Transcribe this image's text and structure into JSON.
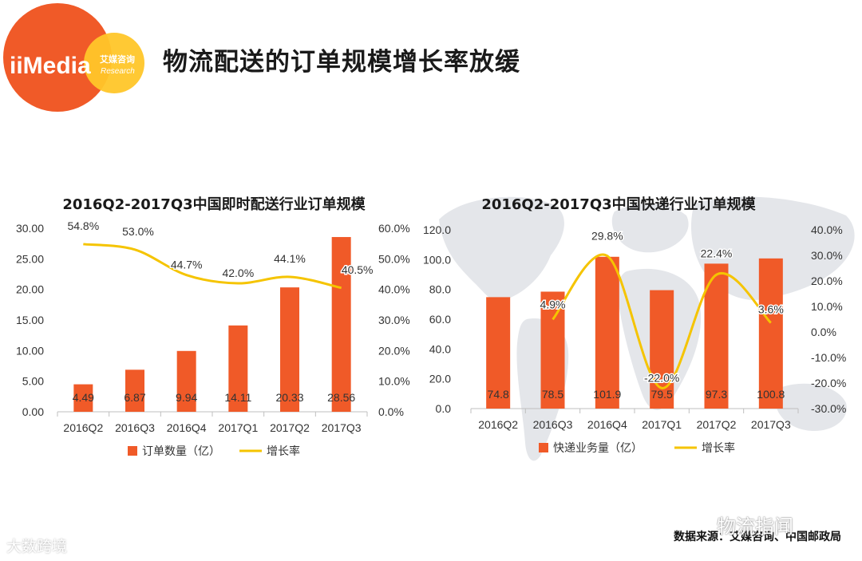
{
  "header": {
    "logo_text": "iiMedia",
    "logo_cn": "艾媒咨询",
    "logo_en": "Research",
    "title": "物流配送的订单规模增长率放缓"
  },
  "colors": {
    "bar": "#F05A28",
    "line": "#F5C400",
    "logo_orange": "#F05A28",
    "logo_yellow": "#FFC629",
    "map": "#E4E6EA"
  },
  "chart_data": [
    {
      "type": "bar",
      "title": "2016Q2-2017Q3中国即时配送行业订单规模",
      "categories": [
        "2016Q2",
        "2016Q3",
        "2016Q4",
        "2017Q1",
        "2017Q2",
        "2017Q3"
      ],
      "series": [
        {
          "name": "订单数量（亿）",
          "type": "bar",
          "axis": "left",
          "values": [
            4.49,
            6.87,
            9.94,
            14.11,
            20.33,
            28.56
          ],
          "labels": [
            "4.49",
            "6.87",
            "9.94",
            "14.11",
            "20.33",
            "28.56"
          ]
        },
        {
          "name": "增长率",
          "type": "line",
          "axis": "right",
          "values": [
            54.8,
            53.0,
            44.7,
            42.0,
            44.1,
            40.5
          ],
          "labels": [
            "54.8%",
            "53.0%",
            "44.7%",
            "42.0%",
            "44.1%",
            "40.5%"
          ]
        }
      ],
      "ylim": [
        0,
        30
      ],
      "y2lim": [
        0,
        60
      ],
      "yticks": [
        "0.00",
        "5.00",
        "10.00",
        "15.00",
        "20.00",
        "25.00",
        "30.00"
      ],
      "y2ticks": [
        "0.0%",
        "10.0%",
        "20.0%",
        "30.0%",
        "40.0%",
        "50.0%",
        "60.0%"
      ],
      "legend": [
        "订单数量（亿）",
        "增长率"
      ],
      "legend_position": "bottom"
    },
    {
      "type": "bar",
      "title": "2016Q2-2017Q3中国快递行业订单规模",
      "categories": [
        "2016Q2",
        "2016Q3",
        "2016Q4",
        "2017Q1",
        "2017Q2",
        "2017Q3"
      ],
      "series": [
        {
          "name": "快递业务量（亿）",
          "type": "bar",
          "axis": "left",
          "values": [
            74.8,
            78.5,
            101.9,
            79.5,
            97.3,
            100.8
          ],
          "labels": [
            "74.8",
            "78.5",
            "101.9",
            "79.5",
            "97.3",
            "100.8"
          ]
        },
        {
          "name": "增长率",
          "type": "line",
          "axis": "right",
          "values": [
            null,
            4.9,
            29.8,
            -22.0,
            22.4,
            3.6
          ],
          "labels": [
            "",
            "4.9%",
            "29.8%",
            "-22.0%",
            "22.4%",
            "3.6%"
          ]
        }
      ],
      "ylim": [
        0,
        120
      ],
      "y2lim": [
        -30,
        40
      ],
      "yticks": [
        "0.0",
        "20.0",
        "40.0",
        "60.0",
        "80.0",
        "100.0",
        "120.0"
      ],
      "y2ticks": [
        "-30.0%",
        "-20.0%",
        "-10.0%",
        "0.0%",
        "10.0%",
        "20.0%",
        "30.0%",
        "40.0%"
      ],
      "legend": [
        "快递业务量（亿）",
        "增长率"
      ],
      "legend_position": "bottom"
    }
  ],
  "footer": {
    "source": "数据来源：艾媒咨询、中国邮政局",
    "watermark_left": "大数跨境",
    "watermark_right": "物流指闻"
  }
}
